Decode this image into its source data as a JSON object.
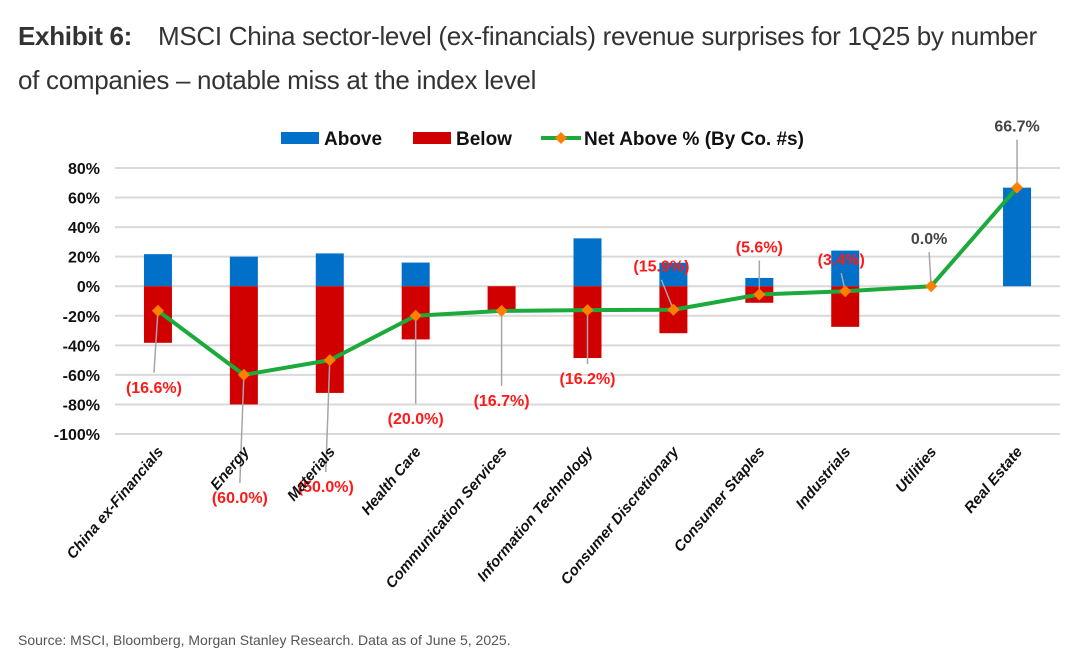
{
  "header": {
    "exhibit_label": "Exhibit 6:",
    "title": "MSCI China sector-level (ex-financials) revenue surprises for 1Q25 by number of companies – notable miss at the index level"
  },
  "footer": {
    "source": "Source: MSCI, Bloomberg, Morgan Stanley Research. Data as of June 5, 2025."
  },
  "chart_data": {
    "type": "bar",
    "title": "MSCI China sector-level (ex-financials) revenue surprises for 1Q25 by number of companies – notable miss at the index level",
    "xlabel": "",
    "ylabel": "",
    "ylim": [
      -100,
      80
    ],
    "yticks": [
      80,
      60,
      40,
      20,
      0,
      -20,
      -40,
      -60,
      -80,
      -100
    ],
    "ytick_labels": [
      "80%",
      "60%",
      "40%",
      "20%",
      "0%",
      "-20%",
      "-40%",
      "-60%",
      "-80%",
      "-100%"
    ],
    "grid": true,
    "legend_position": "top-center",
    "categories": [
      "China ex-Financials",
      "Energy",
      "Materials",
      "Health Care",
      "Communication Services",
      "Information Technology",
      "Consumer Discretionary",
      "Consumer Staples",
      "Industrials",
      "Utilities",
      "Real Estate"
    ],
    "series": [
      {
        "name": "Above",
        "type": "bar",
        "color": "#0070C8",
        "values": [
          21.7,
          20.0,
          22.2,
          16.0,
          0.0,
          32.4,
          15.9,
          5.6,
          24.1,
          0.0,
          66.7
        ]
      },
      {
        "name": "Below",
        "type": "bar",
        "color": "#D00000",
        "values": [
          -38.3,
          -80.0,
          -72.2,
          -36.0,
          -16.7,
          -48.6,
          -31.8,
          -11.2,
          -27.5,
          0.0,
          0.0
        ]
      },
      {
        "name": "Net Above % (By Co. #s)",
        "type": "line",
        "color": "#1DAA3C",
        "marker_color": "#FF7F00",
        "values": [
          -16.6,
          -60.0,
          -50.0,
          -20.0,
          -16.7,
          -16.2,
          -15.9,
          -5.6,
          -3.4,
          0.0,
          66.7
        ]
      }
    ],
    "data_labels": [
      "(16.6%)",
      "(60.0%)",
      "(50.0%)",
      "(20.0%)",
      "(16.7%)",
      "(16.2%)",
      "(15.9%)",
      "(5.6%)",
      "(3.4%)",
      "0.0%",
      "66.7%"
    ],
    "label_colors": {
      "negative": "#FF1A1A",
      "non_negative": "#444444"
    }
  }
}
